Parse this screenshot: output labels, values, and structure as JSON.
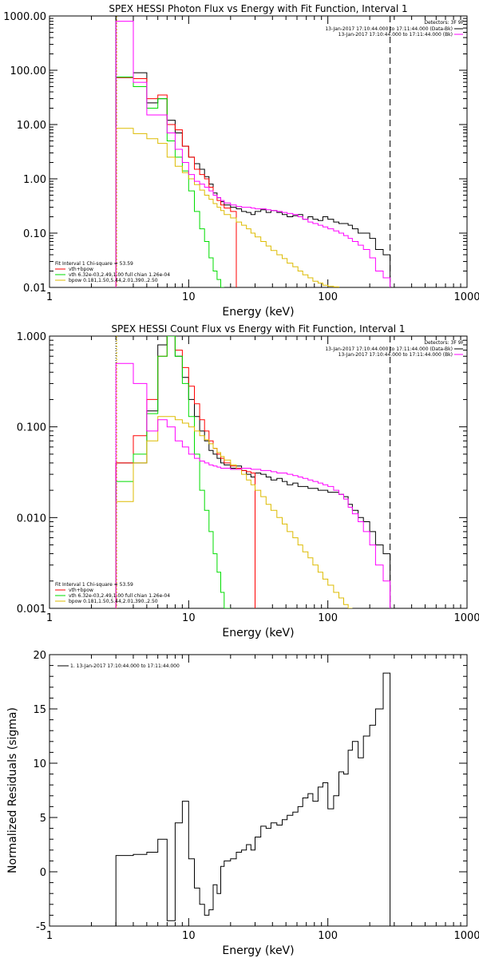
{
  "colors": {
    "background": "#ffffff",
    "axes": "#000000",
    "data": "#000000",
    "fit_total": "#ff0000",
    "vth": "#00dd00",
    "bpow": "#ddbb00",
    "background_series": "#ff00ff"
  },
  "chart_data": [
    {
      "type": "line",
      "title": "SPEX HESSI Photon Flux vs Energy with Fit Function, Interval 1",
      "xlabel": "Energy (keV)",
      "ylabel": "",
      "xscale": "log",
      "yscale": "log",
      "xlim": [
        1,
        1000
      ],
      "ylim": [
        0.01,
        1000
      ],
      "x_ticks": [
        "1",
        "10",
        "100",
        "1000"
      ],
      "y_ticks": [
        "0.01",
        "0.10",
        "1.00",
        "10.00",
        "100.00",
        "1000.00"
      ],
      "legend_top": {
        "header": "Detectors: 3F 9F",
        "entries": [
          "13-Jan-2017 17:10:44.000 to 17:11:44.000 (Data-Bk)",
          "13-Jan-2017 17:10:44.000 to 17:11:44.000 (Bk)"
        ]
      },
      "legend_bottom": {
        "header": "Fit Interval 1    Chi-square = 53.59",
        "entries": [
          "vth+bpow",
          "vth 6.32e-03,2.49,1.00  full chian 1.26e-04",
          "bpow 0.181,1.50,5.44,2.01,390.,2.50"
        ]
      },
      "x_edges": [
        3,
        4,
        5,
        6,
        7,
        8,
        9,
        10,
        11,
        12,
        13,
        14,
        15,
        16,
        17,
        18,
        20,
        22,
        24,
        26,
        28,
        30,
        33,
        36,
        39,
        43,
        47,
        51,
        56,
        61,
        66,
        72,
        78,
        85,
        92,
        100,
        110,
        120,
        130,
        140,
        150,
        165,
        180,
        200,
        220,
        250,
        280
      ],
      "series": [
        {
          "name": "Data-Bk",
          "color": "#000000",
          "values": [
            1000,
            90,
            25,
            30,
            12,
            7,
            4,
            2.5,
            1.9,
            1.5,
            1.1,
            0.8,
            0.55,
            0.45,
            0.38,
            0.33,
            0.3,
            0.28,
            0.25,
            0.24,
            0.22,
            0.25,
            0.27,
            0.24,
            0.26,
            0.24,
            0.22,
            0.2,
            0.21,
            0.22,
            0.18,
            0.2,
            0.18,
            0.17,
            0.2,
            0.18,
            0.16,
            0.15,
            0.15,
            0.14,
            0.12,
            0.1,
            0.1,
            0.08,
            0.05,
            0.04
          ]
        },
        {
          "name": "vth+bpow",
          "color": "#ff0000",
          "values": [
            73,
            70,
            30,
            35,
            10,
            8,
            4,
            2.5,
            1.5,
            1.2,
            1,
            0.7,
            0.5,
            0.4,
            0.33,
            0.29,
            0.25
          ]
        },
        {
          "name": "vth",
          "color": "#00dd00",
          "values": [
            75,
            50,
            20,
            30,
            5,
            2.5,
            1.4,
            0.6,
            0.25,
            0.12,
            0.07,
            0.035,
            0.02,
            0.014,
            0.01
          ]
        },
        {
          "name": "bpow",
          "color": "#ddbb00",
          "values": [
            8.5,
            6.8,
            5.5,
            4.5,
            2.5,
            1.7,
            1.3,
            1,
            0.78,
            0.62,
            0.5,
            0.42,
            0.35,
            0.3,
            0.26,
            0.22,
            0.19,
            0.16,
            0.14,
            0.12,
            0.1,
            0.085,
            0.07,
            0.058,
            0.048,
            0.04,
            0.034,
            0.028,
            0.024,
            0.02,
            0.017,
            0.015,
            0.013,
            0.012,
            0.011,
            0.0105,
            0.0102
          ]
        },
        {
          "name": "Bk",
          "color": "#ff00ff",
          "values": [
            800,
            60,
            15,
            15,
            7,
            3.5,
            2,
            1.2,
            0.9,
            0.8,
            0.7,
            0.6,
            0.5,
            0.45,
            0.4,
            0.36,
            0.33,
            0.31,
            0.3,
            0.3,
            0.29,
            0.28,
            0.28,
            0.27,
            0.26,
            0.25,
            0.24,
            0.23,
            0.22,
            0.2,
            0.18,
            0.16,
            0.15,
            0.14,
            0.13,
            0.12,
            0.11,
            0.1,
            0.09,
            0.08,
            0.07,
            0.06,
            0.05,
            0.035,
            0.02,
            0.015
          ]
        }
      ]
    },
    {
      "type": "line",
      "title": "SPEX HESSI Count Flux vs Energy with Fit Function, Interval 1",
      "xlabel": "Energy (keV)",
      "ylabel": "",
      "xscale": "log",
      "yscale": "log",
      "xlim": [
        1,
        1000
      ],
      "ylim": [
        0.001,
        1
      ],
      "x_ticks": [
        "1",
        "10",
        "100",
        "1000"
      ],
      "y_ticks": [
        "0.001",
        "0.010",
        "0.100",
        "1.000"
      ],
      "legend_top": {
        "header": "Detectors: 3F 9F",
        "entries": [
          "13-Jan-2017 17:10:44.000 to 17:11:44.000 (Data-Bk)",
          "13-Jan-2017 17:10:44.000 to 17:11:44.000 (Bk)"
        ]
      },
      "legend_bottom": {
        "header": "Fit Interval 1    Chi-square = 53.59",
        "entries": [
          "vth+bpow",
          "vth 6.32e-03,2.49,1.00  full chian 1.26e-04",
          "bpow 0.181,1.50,5.44,2.01,390.,2.50"
        ]
      },
      "x_edges": [
        3,
        4,
        5,
        6,
        7,
        8,
        9,
        10,
        11,
        12,
        13,
        14,
        15,
        16,
        17,
        18,
        20,
        22,
        24,
        26,
        28,
        30,
        33,
        36,
        39,
        43,
        47,
        51,
        56,
        61,
        66,
        72,
        78,
        85,
        92,
        100,
        110,
        120,
        130,
        140,
        150,
        165,
        180,
        200,
        220,
        250,
        280
      ],
      "series": [
        {
          "name": "Data-Bk",
          "color": "#000000",
          "values": [
            0.04,
            0.04,
            0.15,
            0.8,
            1,
            0.6,
            0.35,
            0.2,
            0.13,
            0.09,
            0.07,
            0.055,
            0.05,
            0.045,
            0.04,
            0.038,
            0.035,
            0.037,
            0.033,
            0.03,
            0.028,
            0.031,
            0.03,
            0.028,
            0.026,
            0.027,
            0.025,
            0.023,
            0.024,
            0.022,
            0.022,
            0.021,
            0.021,
            0.02,
            0.02,
            0.019,
            0.019,
            0.018,
            0.017,
            0.014,
            0.012,
            0.01,
            0.009,
            0.007,
            0.005,
            0.004
          ]
        },
        {
          "name": "vth+bpow",
          "color": "#ff0000",
          "values": [
            0.04,
            0.08,
            0.2,
            0.6,
            1,
            0.7,
            0.45,
            0.28,
            0.18,
            0.12,
            0.09,
            0.07,
            0.058,
            0.05,
            0.045,
            0.04,
            0.037,
            0.035,
            0.033,
            0.032,
            0.031
          ]
        },
        {
          "name": "vth",
          "color": "#00dd00",
          "values": [
            0.025,
            0.05,
            0.14,
            0.6,
            1,
            0.6,
            0.3,
            0.13,
            0.05,
            0.02,
            0.012,
            0.007,
            0.004,
            0.0025,
            0.0015,
            0.001
          ]
        },
        {
          "name": "bpow",
          "color": "#ddbb00",
          "values": [
            0.015,
            0.04,
            0.07,
            0.13,
            0.13,
            0.12,
            0.11,
            0.1,
            0.09,
            0.08,
            0.072,
            0.065,
            0.058,
            0.052,
            0.047,
            0.043,
            0.038,
            0.034,
            0.03,
            0.026,
            0.023,
            0.02,
            0.017,
            0.014,
            0.012,
            0.01,
            0.0085,
            0.007,
            0.006,
            0.005,
            0.0042,
            0.0036,
            0.003,
            0.0025,
            0.0021,
            0.0018,
            0.0015,
            0.0013,
            0.0011,
            0.001
          ]
        },
        {
          "name": "Bk",
          "color": "#ff00ff",
          "values": [
            0.5,
            0.3,
            0.09,
            0.12,
            0.1,
            0.07,
            0.06,
            0.05,
            0.045,
            0.042,
            0.04,
            0.038,
            0.037,
            0.036,
            0.035,
            0.035,
            0.034,
            0.034,
            0.035,
            0.035,
            0.034,
            0.034,
            0.033,
            0.033,
            0.032,
            0.031,
            0.031,
            0.03,
            0.029,
            0.028,
            0.027,
            0.026,
            0.025,
            0.024,
            0.023,
            0.022,
            0.02,
            0.018,
            0.016,
            0.013,
            0.011,
            0.009,
            0.007,
            0.005,
            0.003,
            0.002
          ]
        }
      ]
    },
    {
      "type": "line",
      "title": "",
      "xlabel": "Energy (keV)",
      "ylabel": "Normalized Residuals (sigma)",
      "xscale": "log",
      "yscale": "linear",
      "xlim": [
        1,
        1000
      ],
      "ylim": [
        -5,
        20
      ],
      "x_ticks": [
        "1",
        "10",
        "100",
        "1000"
      ],
      "y_ticks": [
        "-5",
        "0",
        "5",
        "10",
        "15",
        "20"
      ],
      "legend": "1. 13-Jan-2017 17:10:44.000 to 17:11:44.000",
      "x_edges": [
        3,
        4,
        5,
        6,
        7,
        8,
        9,
        10,
        11,
        12,
        13,
        14,
        15,
        16,
        17,
        18,
        20,
        22,
        24,
        26,
        28,
        30,
        33,
        36,
        39,
        43,
        47,
        51,
        56,
        61,
        66,
        72,
        78,
        85,
        92,
        100,
        110,
        120,
        130,
        140,
        150,
        165,
        180,
        200,
        220,
        250,
        280
      ],
      "series": [
        {
          "name": "residuals",
          "color": "#000000",
          "values": [
            1.5,
            1.6,
            1.8,
            3.0,
            -4.5,
            4.5,
            6.5,
            1.2,
            -1.5,
            -3.0,
            -4.0,
            -3.5,
            -1.2,
            -2.0,
            0.5,
            1.0,
            1.2,
            1.8,
            2.0,
            2.5,
            2.0,
            3.2,
            4.2,
            4.0,
            4.5,
            4.3,
            4.8,
            5.2,
            5.5,
            6.0,
            6.8,
            7.2,
            6.5,
            7.8,
            8.2,
            5.8,
            7.0,
            9.2,
            9.0,
            11.2,
            12.0,
            10.5,
            12.5,
            13.5,
            15.0,
            18.3
          ]
        }
      ]
    }
  ]
}
